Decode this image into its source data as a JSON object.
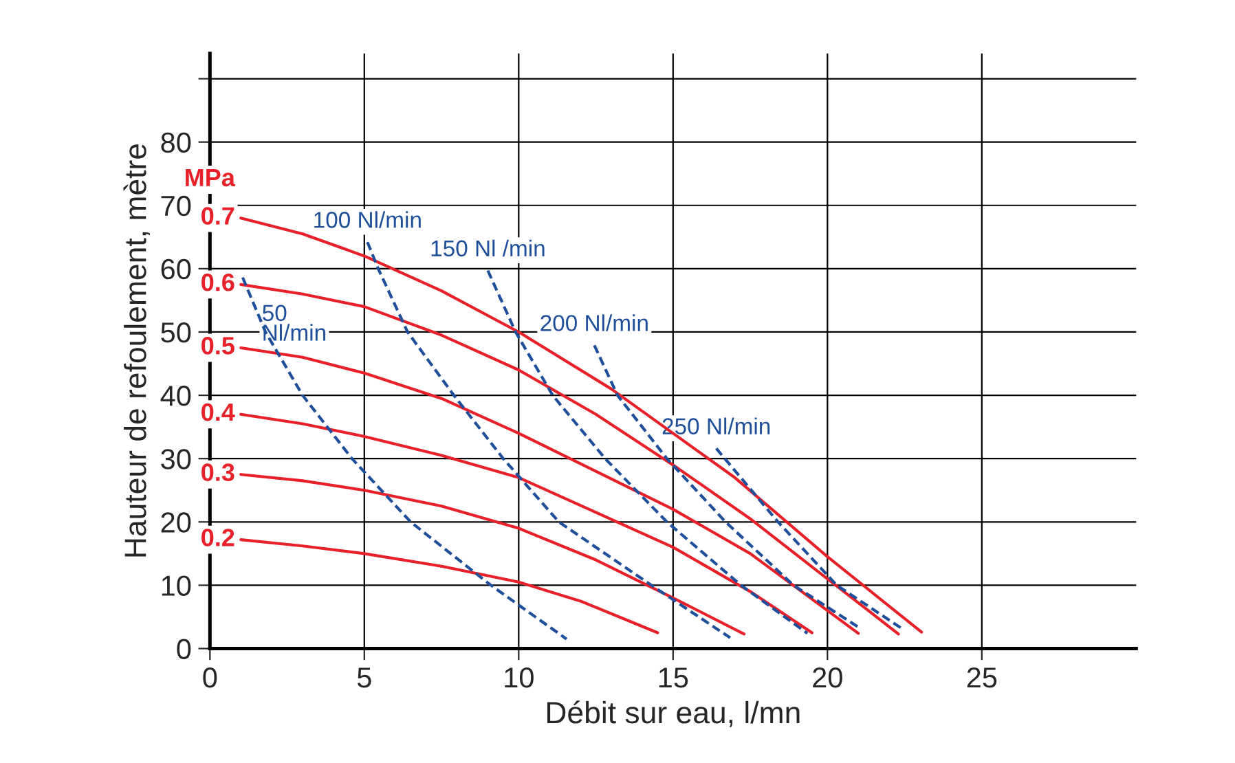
{
  "chart_data": {
    "type": "line",
    "xlabel": "Débit sur eau, l/mn",
    "ylabel": "Hauteur de refoulement, mètre",
    "xlim": [
      0,
      30
    ],
    "xticks": [
      0,
      5,
      10,
      15,
      20,
      25
    ],
    "ylim": [
      0,
      94
    ],
    "yticks": [
      0,
      10,
      20,
      30,
      40,
      50,
      60,
      70,
      80,
      {
        "value": 90,
        "label": null
      }
    ],
    "grid": true,
    "legend": false,
    "marker": "none",
    "annotations": [
      "MPa"
    ],
    "series": [
      {
        "name": "0.7",
        "color": "#e8202a",
        "line_style": "solid",
        "x": [
          1,
          3,
          5,
          7.5,
          10,
          13,
          15,
          17,
          20,
          23.05
        ],
        "values": [
          68,
          65.5,
          62,
          56.5,
          50,
          41,
          34,
          27,
          14.5,
          2.6
        ]
      },
      {
        "name": "0.6",
        "color": "#e8202a",
        "line_style": "solid",
        "x": [
          1,
          3,
          5,
          7.5,
          10,
          12.5,
          15,
          17.5,
          20,
          22.3
        ],
        "values": [
          57.5,
          56,
          54,
          49.5,
          44,
          37,
          29,
          20.5,
          11,
          2.3
        ]
      },
      {
        "name": "0.5",
        "color": "#e8202a",
        "line_style": "solid",
        "x": [
          1,
          3,
          5,
          7.5,
          10,
          12.5,
          15,
          17.5,
          21
        ],
        "values": [
          47.5,
          46,
          43.5,
          39.5,
          34,
          28,
          22,
          15,
          2.4
        ]
      },
      {
        "name": "0.4",
        "color": "#e8202a",
        "line_style": "solid",
        "x": [
          1,
          3,
          5,
          7.5,
          10,
          12.5,
          15,
          17.5,
          19.5
        ],
        "values": [
          37,
          35.5,
          33.5,
          30.5,
          27,
          21.5,
          16,
          9,
          2.5
        ]
      },
      {
        "name": "0.3",
        "color": "#e8202a",
        "line_style": "solid",
        "x": [
          1,
          3,
          5,
          7.5,
          10,
          12.5,
          15,
          17.3
        ],
        "values": [
          27.5,
          26.5,
          25,
          22.5,
          19,
          14,
          8,
          2.3
        ]
      },
      {
        "name": "0.2",
        "color": "#e8202a",
        "line_style": "solid",
        "x": [
          1,
          3,
          5,
          7.5,
          10,
          12,
          13.5,
          14.5
        ],
        "values": [
          17.2,
          16.2,
          15,
          13,
          10.5,
          7.5,
          4.5,
          2.5
        ]
      },
      {
        "name": "50\nNl/min",
        "color": "#1f4e9a",
        "line_style": "dashed",
        "x": [
          1.06,
          1.8,
          3.0,
          4.6,
          6.5,
          9.1,
          11.55
        ],
        "values": [
          58.6,
          50,
          40,
          30,
          20,
          10,
          1.5
        ]
      },
      {
        "name": "100 Nl/min",
        "color": "#1f4e9a",
        "line_style": "dashed",
        "x": [
          5.1,
          5.45,
          6.4,
          7.9,
          9.5,
          11.3,
          14.3,
          16.85
        ],
        "values": [
          64.2,
          60,
          50,
          40,
          30,
          20,
          10,
          1.7
        ]
      },
      {
        "name": "150 Nl /min",
        "color": "#1f4e9a",
        "line_style": "dashed",
        "x": [
          9.0,
          9.9,
          11.1,
          12.8,
          14.8,
          17.2,
          19.35
        ],
        "values": [
          59.7,
          50,
          40,
          30,
          20,
          10,
          2.4
        ]
      },
      {
        "name": "200 Nl/min",
        "color": "#1f4e9a",
        "line_style": "dashed",
        "x": [
          12.45,
          13.2,
          14.8,
          16.7,
          18.9,
          21.0
        ],
        "values": [
          47.9,
          40,
          30,
          20,
          10,
          3.4
        ]
      },
      {
        "name": "250 Nl/min",
        "color": "#1f4e9a",
        "line_style": "dashed",
        "x": [
          16.4,
          18.4,
          20.3,
          22.4
        ],
        "values": [
          31.6,
          20,
          10,
          3.2
        ]
      }
    ]
  }
}
